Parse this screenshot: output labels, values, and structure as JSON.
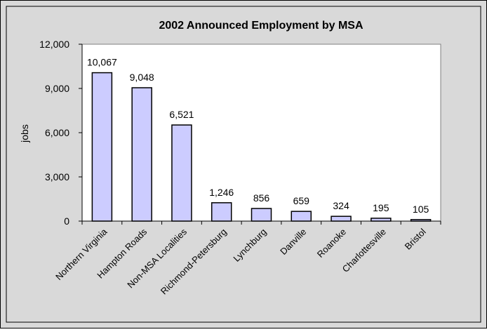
{
  "chart_data": {
    "type": "bar",
    "title": "2002 Announced Employment by MSA",
    "xlabel": "",
    "ylabel": "jobs",
    "ylim": [
      0,
      12000
    ],
    "yticks": [
      "0",
      "3,000",
      "6,000",
      "9,000",
      "12,000"
    ],
    "ytick_values": [
      0,
      3000,
      6000,
      9000,
      12000
    ],
    "grid": false,
    "legend": "none",
    "categories": [
      "Northern Virginia",
      "Hampton Roads",
      "Non-MSA Localities",
      "Richmond-Petersburg",
      "Lynchburg",
      "Danville",
      "Roanoke",
      "Charlottesville",
      "Bristol"
    ],
    "values": [
      10067,
      9048,
      6521,
      1246,
      856,
      659,
      324,
      195,
      105
    ],
    "value_labels": [
      "10,067",
      "9,048",
      "6,521",
      "1,246",
      "856",
      "659",
      "324",
      "195",
      "105"
    ],
    "colors": {
      "bar_fill": "#ccccff",
      "bar_stroke": "#000000",
      "plot_background": "#ffffff",
      "outer_background": "#d9d9d9"
    }
  }
}
